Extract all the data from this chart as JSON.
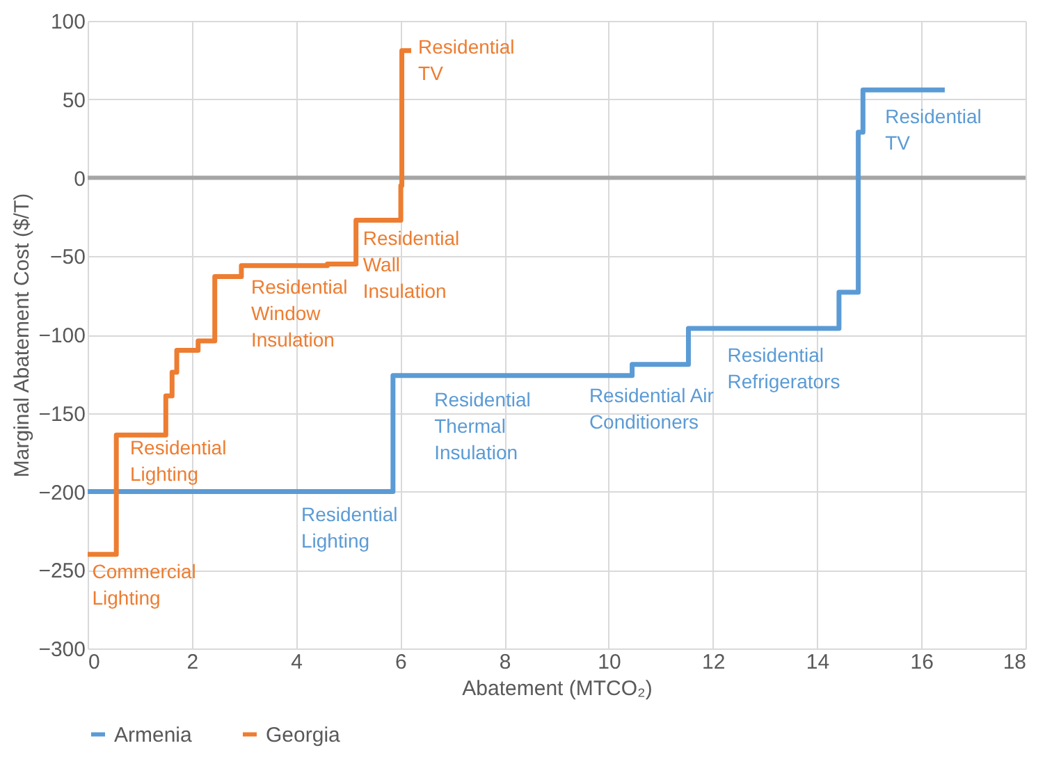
{
  "chart_data": {
    "type": "step",
    "xlabel": "Abatement (MTCO₂)",
    "ylabel": "Marginal Abatement Cost ($/T)",
    "xlim": [
      0,
      18
    ],
    "xticks": [
      0,
      2,
      4,
      6,
      8,
      10,
      12,
      14,
      16,
      18
    ],
    "ylim": [
      -300,
      100
    ],
    "yticks": [
      -300,
      -250,
      -200,
      -150,
      -100,
      -50,
      0,
      50,
      100
    ],
    "grid": true,
    "legend": "bottom",
    "series": [
      {
        "name": "Armenia",
        "color": "#5b9bd5",
        "x": [
          0,
          5.86,
          10.45,
          11.53,
          14.42,
          14.79,
          14.88,
          16.45
        ],
        "values": [
          -200,
          -126,
          -119,
          -96,
          -73,
          29,
          56,
          56
        ]
      },
      {
        "name": "Georgia",
        "color": "#ed7d31",
        "x": [
          0,
          0.55,
          1.5,
          1.62,
          1.71,
          2.12,
          2.44,
          2.95,
          4.6,
          5.15,
          6.01,
          6.03,
          6.21
        ],
        "values": [
          -240,
          -164,
          -139,
          -124,
          -110,
          -104,
          -63,
          -56,
          -55,
          -27,
          -5,
          81,
          81
        ]
      }
    ],
    "ref_lines": [
      {
        "axis": "y",
        "value": 0,
        "color": "#a5a5a5"
      }
    ],
    "annotations": [
      {
        "text": "Residential\nTV",
        "x": 6.21,
        "y": 81
      },
      {
        "text": "Residential\nWall\nInsulation",
        "x": 5.15,
        "y": -27
      },
      {
        "text": "Residential\nWindow\nInsulation",
        "x": 2.95,
        "y": -56
      },
      {
        "text": "Residential\nLighting",
        "x": 1.0,
        "y": -164
      },
      {
        "text": "Commercial\nLighting",
        "x": 0.3,
        "y": -240
      },
      {
        "text": "Residential\nLighting",
        "x": 4.5,
        "y": -200
      },
      {
        "text": "Residential\nThermal\nInsulation",
        "x": 7,
        "y": -126
      },
      {
        "text": "Residential Air\nConditioners",
        "x": 10,
        "y": -126
      },
      {
        "text": "Residential\nRefrigerators",
        "x": 13,
        "y": -96
      },
      {
        "text": "Residential\nTV",
        "x": 16,
        "y": 56
      }
    ]
  }
}
